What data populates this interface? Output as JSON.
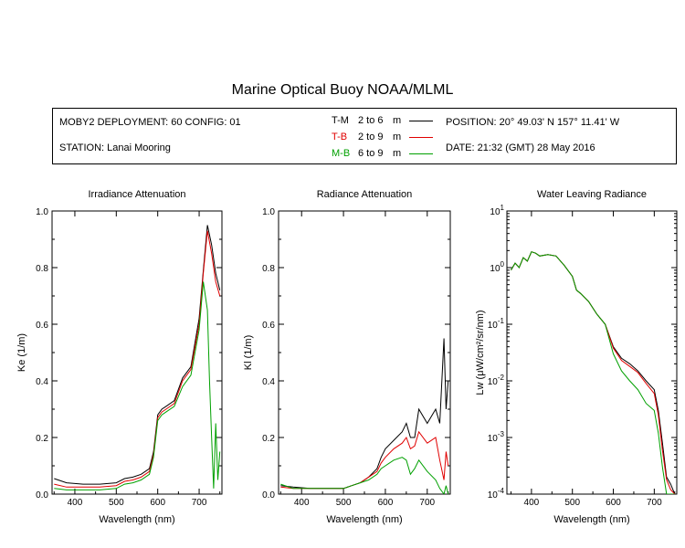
{
  "title": "Marine Optical Buoy NOAA/MLML",
  "info": {
    "deployment": "MOBY2 DEPLOYMENT: 60 CONFIG: 01",
    "station": "STATION: Lanai Mooring",
    "position": "POSITION: 20° 49.03' N  157° 11.41' W",
    "date": "DATE: 21:32 (GMT) 28 May 2016"
  },
  "legend": [
    {
      "code": "T-M",
      "range": "2 to 6",
      "unit": "m",
      "color": "#000000"
    },
    {
      "code": "T-B",
      "range": "2 to 9",
      "unit": "m",
      "color": "#e00000"
    },
    {
      "code": "M-B",
      "range": "6 to 9",
      "unit": "m",
      "color": "#00a000"
    }
  ],
  "chart_data": [
    {
      "type": "line",
      "title": "Irradiance Attenuation",
      "xlabel": "Wavelength (nm)",
      "ylabel": "Ke  (1/m)",
      "xlim": [
        345,
        755
      ],
      "ylim": [
        0,
        1
      ],
      "xticks": [
        400,
        500,
        600,
        700
      ],
      "yticks": [
        0.0,
        0.2,
        0.4,
        0.6,
        0.8,
        1.0
      ],
      "ytick_labels": [
        "0.0",
        "0.2",
        "0.4",
        "0.6",
        "0.8",
        "1.0"
      ],
      "series": [
        {
          "name": "T-M",
          "color": "#000000",
          "x": [
            350,
            380,
            420,
            460,
            500,
            520,
            540,
            560,
            580,
            590,
            600,
            610,
            620,
            640,
            660,
            680,
            700,
            710,
            720,
            730,
            740,
            750
          ],
          "y": [
            0.055,
            0.04,
            0.035,
            0.035,
            0.04,
            0.055,
            0.06,
            0.07,
            0.09,
            0.15,
            0.28,
            0.3,
            0.31,
            0.33,
            0.41,
            0.45,
            0.62,
            0.79,
            0.95,
            0.88,
            0.78,
            0.72
          ]
        },
        {
          "name": "T-B",
          "color": "#e00000",
          "x": [
            350,
            380,
            420,
            460,
            500,
            520,
            540,
            560,
            580,
            590,
            600,
            610,
            620,
            640,
            660,
            680,
            700,
            710,
            720,
            730,
            740,
            750
          ],
          "y": [
            0.035,
            0.025,
            0.025,
            0.025,
            0.03,
            0.045,
            0.05,
            0.06,
            0.08,
            0.14,
            0.27,
            0.29,
            0.3,
            0.32,
            0.4,
            0.44,
            0.6,
            0.78,
            0.93,
            0.85,
            0.75,
            0.7
          ]
        },
        {
          "name": "M-B",
          "color": "#00a000",
          "x": [
            350,
            380,
            420,
            460,
            500,
            520,
            540,
            560,
            580,
            590,
            600,
            610,
            620,
            640,
            660,
            680,
            700,
            710,
            720,
            725,
            730,
            735,
            740,
            745,
            750
          ],
          "y": [
            0.02,
            0.015,
            0.015,
            0.015,
            0.02,
            0.035,
            0.04,
            0.05,
            0.07,
            0.13,
            0.26,
            0.28,
            0.29,
            0.31,
            0.38,
            0.42,
            0.58,
            0.75,
            0.65,
            0.4,
            0.2,
            0.02,
            0.25,
            0.05,
            0.15
          ]
        }
      ]
    },
    {
      "type": "line",
      "title": "Radiance Attenuation",
      "xlabel": "Wavelength (nm)",
      "ylabel": "Kl  (1/m)",
      "xlim": [
        345,
        755
      ],
      "ylim": [
        0,
        1
      ],
      "xticks": [
        400,
        500,
        600,
        700
      ],
      "yticks": [
        0.0,
        0.2,
        0.4,
        0.6,
        0.8,
        1.0
      ],
      "ytick_labels": [
        "0.0",
        "0.2",
        "0.4",
        "0.6",
        "0.8",
        "1.0"
      ],
      "series": [
        {
          "name": "T-M",
          "color": "#000000",
          "x": [
            350,
            380,
            420,
            460,
            500,
            520,
            540,
            560,
            580,
            590,
            600,
            620,
            640,
            650,
            660,
            670,
            680,
            700,
            720,
            730,
            740,
            745,
            750
          ],
          "y": [
            0.03,
            0.025,
            0.02,
            0.02,
            0.02,
            0.03,
            0.04,
            0.06,
            0.09,
            0.13,
            0.16,
            0.19,
            0.22,
            0.25,
            0.2,
            0.2,
            0.3,
            0.25,
            0.3,
            0.25,
            0.55,
            0.3,
            0.4
          ]
        },
        {
          "name": "T-B",
          "color": "#e00000",
          "x": [
            350,
            380,
            420,
            460,
            500,
            520,
            540,
            560,
            580,
            590,
            600,
            620,
            640,
            650,
            660,
            670,
            680,
            700,
            720,
            730,
            740,
            745,
            750
          ],
          "y": [
            0.025,
            0.02,
            0.02,
            0.02,
            0.02,
            0.03,
            0.04,
            0.06,
            0.08,
            0.11,
            0.13,
            0.16,
            0.18,
            0.2,
            0.16,
            0.17,
            0.22,
            0.18,
            0.2,
            0.12,
            0.05,
            0.15,
            0.1
          ]
        },
        {
          "name": "M-B",
          "color": "#00a000",
          "x": [
            350,
            380,
            420,
            460,
            500,
            520,
            540,
            560,
            580,
            590,
            600,
            620,
            640,
            650,
            660,
            670,
            680,
            700,
            720,
            730,
            740,
            745,
            750
          ],
          "y": [
            0.035,
            0.02,
            0.02,
            0.02,
            0.02,
            0.03,
            0.04,
            0.05,
            0.07,
            0.09,
            0.1,
            0.12,
            0.13,
            0.12,
            0.07,
            0.09,
            0.12,
            0.08,
            0.05,
            0.02,
            0.0,
            0.03,
            0.0
          ]
        }
      ]
    },
    {
      "type": "line",
      "title": "Water Leaving Radiance",
      "xlabel": "Wavelength (nm)",
      "ylabel": "Lw  (μW/cm²/sr/nm)",
      "scale": "log",
      "xlim": [
        340,
        755
      ],
      "ylim": [
        0.0001,
        10
      ],
      "xticks": [
        400,
        500,
        600,
        700
      ],
      "yticks": [
        0.0001,
        0.001,
        0.01,
        0.1,
        1,
        10
      ],
      "ytick_labels": [
        [
          "10",
          "-4"
        ],
        [
          "10",
          "-3"
        ],
        [
          "10",
          "-2"
        ],
        [
          "10",
          "-1"
        ],
        [
          "10",
          "0"
        ],
        [
          "10",
          "1"
        ]
      ],
      "series": [
        {
          "name": "T-M",
          "color": "#000000",
          "x": [
            350,
            360,
            370,
            380,
            390,
            400,
            410,
            420,
            440,
            460,
            480,
            500,
            510,
            520,
            540,
            560,
            580,
            600,
            620,
            640,
            660,
            680,
            700,
            710,
            720,
            730,
            740,
            750
          ],
          "y": [
            0.9,
            1.2,
            1.0,
            1.5,
            1.3,
            1.9,
            1.8,
            1.6,
            1.7,
            1.6,
            1.1,
            0.7,
            0.4,
            0.35,
            0.25,
            0.15,
            0.1,
            0.04,
            0.025,
            0.02,
            0.015,
            0.01,
            0.007,
            0.003,
            0.0008,
            0.0002,
            0.00015,
            0.0001
          ]
        },
        {
          "name": "T-B",
          "color": "#e00000",
          "x": [
            350,
            360,
            370,
            380,
            390,
            400,
            410,
            420,
            440,
            460,
            480,
            500,
            510,
            520,
            540,
            560,
            580,
            600,
            620,
            640,
            660,
            680,
            700,
            710,
            720,
            730,
            740,
            750
          ],
          "y": [
            0.9,
            1.2,
            1.0,
            1.5,
            1.3,
            1.9,
            1.8,
            1.6,
            1.7,
            1.6,
            1.1,
            0.7,
            0.4,
            0.35,
            0.25,
            0.15,
            0.1,
            0.038,
            0.023,
            0.018,
            0.014,
            0.009,
            0.006,
            0.0025,
            0.0006,
            0.00018,
            0.00012,
            0.0001
          ]
        },
        {
          "name": "M-B",
          "color": "#00a000",
          "x": [
            350,
            360,
            370,
            380,
            390,
            400,
            410,
            420,
            440,
            460,
            480,
            500,
            510,
            520,
            540,
            560,
            580,
            600,
            620,
            640,
            660,
            680,
            700,
            710,
            720,
            730,
            740,
            750
          ],
          "y": [
            0.9,
            1.2,
            1.0,
            1.5,
            1.3,
            1.9,
            1.8,
            1.6,
            1.7,
            1.6,
            1.1,
            0.7,
            0.4,
            0.35,
            0.25,
            0.15,
            0.1,
            0.03,
            0.015,
            0.01,
            0.007,
            0.004,
            0.003,
            0.0012,
            0.0003,
            0.0001,
            0.0001,
            0.0001
          ]
        }
      ]
    }
  ]
}
